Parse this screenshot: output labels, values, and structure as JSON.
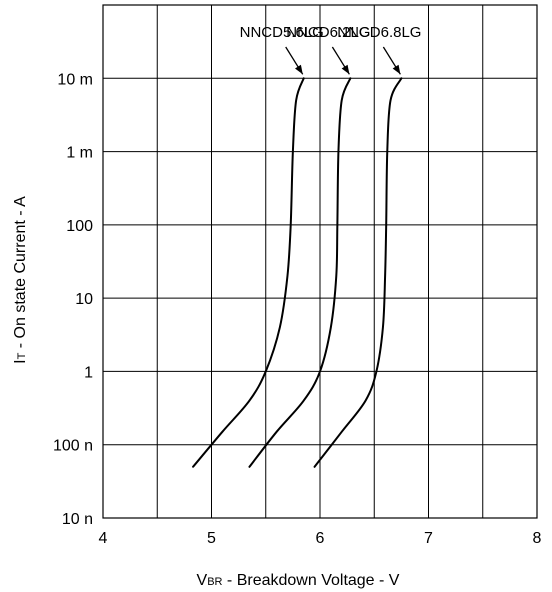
{
  "chart_data": {
    "type": "line",
    "title": "",
    "xlabel": {
      "prefix": "V",
      "subscript": "BR",
      "suffix": " - Breakdown Voltage - V"
    },
    "ylabel": {
      "prefix": "I",
      "subscript": "T",
      "suffix": " - On state Current - A"
    },
    "x_ticks": [
      {
        "value": 4,
        "label": "4"
      },
      {
        "value": 5,
        "label": "5"
      },
      {
        "value": 6,
        "label": "6"
      },
      {
        "value": 7,
        "label": "7"
      },
      {
        "value": 8,
        "label": "8"
      }
    ],
    "y_ticks": [
      {
        "value": 1e-08,
        "label": "10 n"
      },
      {
        "value": 1e-07,
        "label": "100 n"
      },
      {
        "value": 1e-06,
        "label": "1"
      },
      {
        "value": 1e-05,
        "label": "10"
      },
      {
        "value": 0.0001,
        "label": "100"
      },
      {
        "value": 0.001,
        "label": "1 m"
      },
      {
        "value": 0.01,
        "label": "10 m"
      }
    ],
    "xlim": [
      4,
      8
    ],
    "ylim": [
      1e-08,
      0.1
    ],
    "yscale": "log",
    "grid": true,
    "series": [
      {
        "name": "NNCD5.6LG",
        "points": [
          [
            4.83,
            5e-08
          ],
          [
            5.1,
            1.5e-07
          ],
          [
            5.35,
            4e-07
          ],
          [
            5.5,
            1e-06
          ],
          [
            5.63,
            4e-06
          ],
          [
            5.7,
            2e-05
          ],
          [
            5.73,
            0.0001
          ],
          [
            5.75,
            0.001
          ],
          [
            5.78,
            0.005
          ],
          [
            5.85,
            0.01
          ]
        ]
      },
      {
        "name": "NNCD6.2LG",
        "points": [
          [
            5.35,
            5e-08
          ],
          [
            5.6,
            1.5e-07
          ],
          [
            5.85,
            4e-07
          ],
          [
            6.0,
            1e-06
          ],
          [
            6.1,
            4e-06
          ],
          [
            6.15,
            2e-05
          ],
          [
            6.16,
            0.0001
          ],
          [
            6.17,
            0.001
          ],
          [
            6.2,
            0.005
          ],
          [
            6.28,
            0.01
          ]
        ]
      },
      {
        "name": "NNCD6.8LG",
        "points": [
          [
            5.95,
            5e-08
          ],
          [
            6.2,
            1.5e-07
          ],
          [
            6.42,
            4e-07
          ],
          [
            6.52,
            1e-06
          ],
          [
            6.58,
            4e-06
          ],
          [
            6.6,
            2e-05
          ],
          [
            6.61,
            0.0001
          ],
          [
            6.62,
            0.001
          ],
          [
            6.65,
            0.005
          ],
          [
            6.75,
            0.01
          ]
        ]
      }
    ],
    "grid_color": "#000000",
    "line_color": "#000000"
  }
}
